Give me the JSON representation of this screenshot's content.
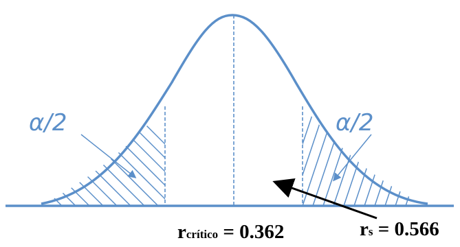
{
  "alpha_left": "α/2",
  "alpha_right": "α/2",
  "r_critico": {
    "symbol": "r",
    "subscript": "crítico",
    "equals": " = ",
    "value": "0.362"
  },
  "r_s": {
    "symbol": "r",
    "subscript": "s",
    "equals": " = ",
    "value": "0.566"
  },
  "colors": {
    "curve": "#5b8fc9",
    "hatch": "#5b8fc9",
    "arrow": "#000000",
    "text": "#000000"
  }
}
